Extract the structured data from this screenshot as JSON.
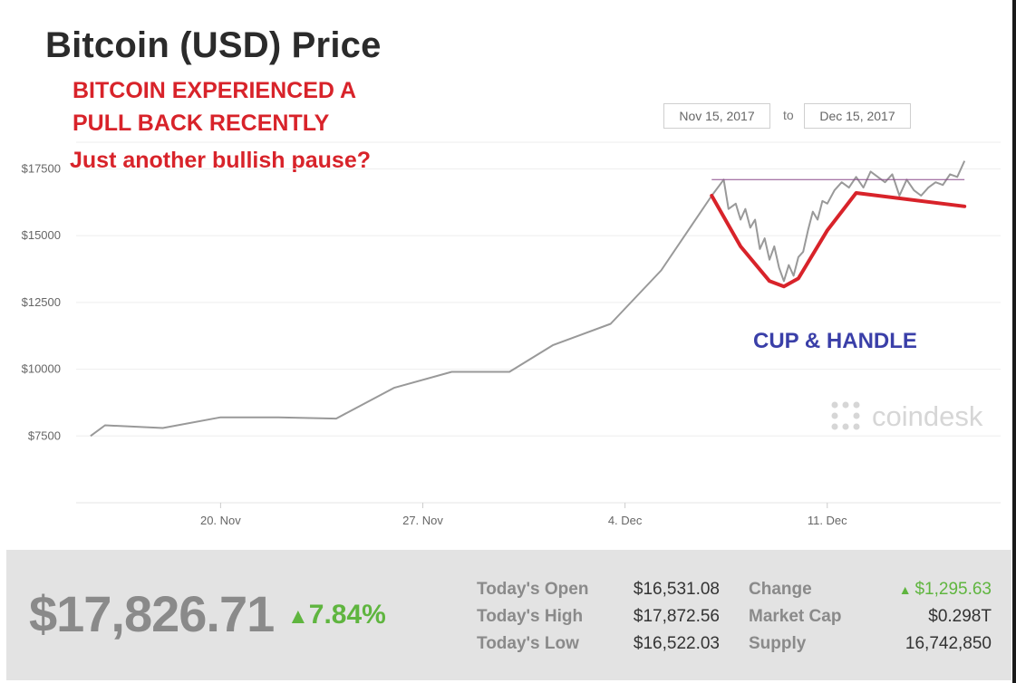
{
  "header": {
    "title": "Bitcoin (USD) Price",
    "annotation_line1": "BITCOIN EXPERIENCED A",
    "annotation_line2": "PULL BACK RECENTLY",
    "annotation_line3": "Just another bullish pause?",
    "pattern_label": "CUP & HANDLE",
    "watermark": "coindesk"
  },
  "date_range": {
    "from": "Nov 15, 2017",
    "to_label": "to",
    "to": "Dec 15, 2017"
  },
  "chart_data": {
    "type": "line",
    "title": "Bitcoin (USD) Price",
    "xlabel": "",
    "ylabel": "",
    "ylim": [
      5000,
      18500
    ],
    "xlim": [
      "2017-11-15",
      "2017-12-17"
    ],
    "grid": true,
    "y_ticks": [
      7500,
      10000,
      12500,
      15000,
      17500
    ],
    "y_tick_labels": [
      "$7500",
      "$10000",
      "$12500",
      "$15000",
      "$17500"
    ],
    "x_ticks": [
      "2017-11-20",
      "2017-11-27",
      "2017-12-04",
      "2017-12-11"
    ],
    "x_tick_labels": [
      "20. Nov",
      "27. Nov",
      "4. Dec",
      "11. Dec"
    ],
    "series": [
      {
        "color": "#999999",
        "points": [
          [
            "2017-11-15T12:00",
            7500
          ],
          [
            "2017-11-16T00:00",
            7900
          ],
          [
            "2017-11-18T00:00",
            7800
          ],
          [
            "2017-11-20T00:00",
            8200
          ],
          [
            "2017-11-22T00:00",
            8200
          ],
          [
            "2017-11-24T00:00",
            8150
          ],
          [
            "2017-11-26T00:00",
            9300
          ],
          [
            "2017-11-28T00:00",
            9900
          ],
          [
            "2017-11-30T00:00",
            9900
          ],
          [
            "2017-12-01T12:00",
            10900
          ],
          [
            "2017-12-03T12:00",
            11700
          ],
          [
            "2017-12-05T06:00",
            13700
          ],
          [
            "2017-12-07T00:00",
            16500
          ],
          [
            "2017-12-07T10:00",
            17100
          ],
          [
            "2017-12-07T14:00",
            16000
          ],
          [
            "2017-12-07T20:00",
            16200
          ],
          [
            "2017-12-08T00:00",
            15600
          ],
          [
            "2017-12-08T04:00",
            16000
          ],
          [
            "2017-12-08T08:00",
            15300
          ],
          [
            "2017-12-08T12:00",
            15600
          ],
          [
            "2017-12-08T16:00",
            14500
          ],
          [
            "2017-12-08T20:00",
            14900
          ],
          [
            "2017-12-09T00:00",
            14100
          ],
          [
            "2017-12-09T04:00",
            14600
          ],
          [
            "2017-12-09T08:00",
            13800
          ],
          [
            "2017-12-09T12:00",
            13300
          ],
          [
            "2017-12-09T16:00",
            13900
          ],
          [
            "2017-12-09T20:00",
            13500
          ],
          [
            "2017-12-10T00:00",
            14200
          ],
          [
            "2017-12-10T04:00",
            14400
          ],
          [
            "2017-12-10T08:00",
            15200
          ],
          [
            "2017-12-10T12:00",
            15900
          ],
          [
            "2017-12-10T16:00",
            15600
          ],
          [
            "2017-12-10T20:00",
            16300
          ],
          [
            "2017-12-11T00:00",
            16200
          ],
          [
            "2017-12-11T06:00",
            16700
          ],
          [
            "2017-12-11T12:00",
            17000
          ],
          [
            "2017-12-11T18:00",
            16800
          ],
          [
            "2017-12-12T00:00",
            17200
          ],
          [
            "2017-12-12T06:00",
            16800
          ],
          [
            "2017-12-12T12:00",
            17400
          ],
          [
            "2017-12-12T18:00",
            17200
          ],
          [
            "2017-12-13T00:00",
            17000
          ],
          [
            "2017-12-13T06:00",
            17300
          ],
          [
            "2017-12-13T12:00",
            16500
          ],
          [
            "2017-12-13T18:00",
            17100
          ],
          [
            "2017-12-14T00:00",
            16700
          ],
          [
            "2017-12-14T06:00",
            16500
          ],
          [
            "2017-12-14T12:00",
            16800
          ],
          [
            "2017-12-14T18:00",
            17000
          ],
          [
            "2017-12-15T00:00",
            16900
          ],
          [
            "2017-12-15T06:00",
            17300
          ],
          [
            "2017-12-15T12:00",
            17200
          ],
          [
            "2017-12-15T18:00",
            17800
          ]
        ]
      }
    ],
    "overlays": {
      "resistance_line": {
        "color": "#8a4a8a",
        "value": 17100,
        "from": "2017-12-07T00:00",
        "to": "2017-12-15T18:00"
      },
      "cup_handle": {
        "color": "#d8232a",
        "points": [
          [
            "2017-12-07T00:00",
            16500
          ],
          [
            "2017-12-08T00:00",
            14600
          ],
          [
            "2017-12-09T00:00",
            13300
          ],
          [
            "2017-12-09T12:00",
            13100
          ],
          [
            "2017-12-10T00:00",
            13400
          ],
          [
            "2017-12-11T00:00",
            15200
          ],
          [
            "2017-12-12T00:00",
            16600
          ],
          [
            "2017-12-15T18:00",
            16100
          ]
        ]
      }
    }
  },
  "ticker": {
    "price": "$17,826.71",
    "change_pct": "7.84%",
    "open_label": "Today's Open",
    "open_value": "$16,531.08",
    "high_label": "Today's High",
    "high_value": "$17,872.56",
    "low_label": "Today's Low",
    "low_value": "$16,522.03",
    "change_label": "Change",
    "change_value": "$1,295.63",
    "mcap_label": "Market Cap",
    "mcap_value": "$0.298T",
    "supply_label": "Supply",
    "supply_value": "16,742,850",
    "up_color": "#5fb53f"
  }
}
